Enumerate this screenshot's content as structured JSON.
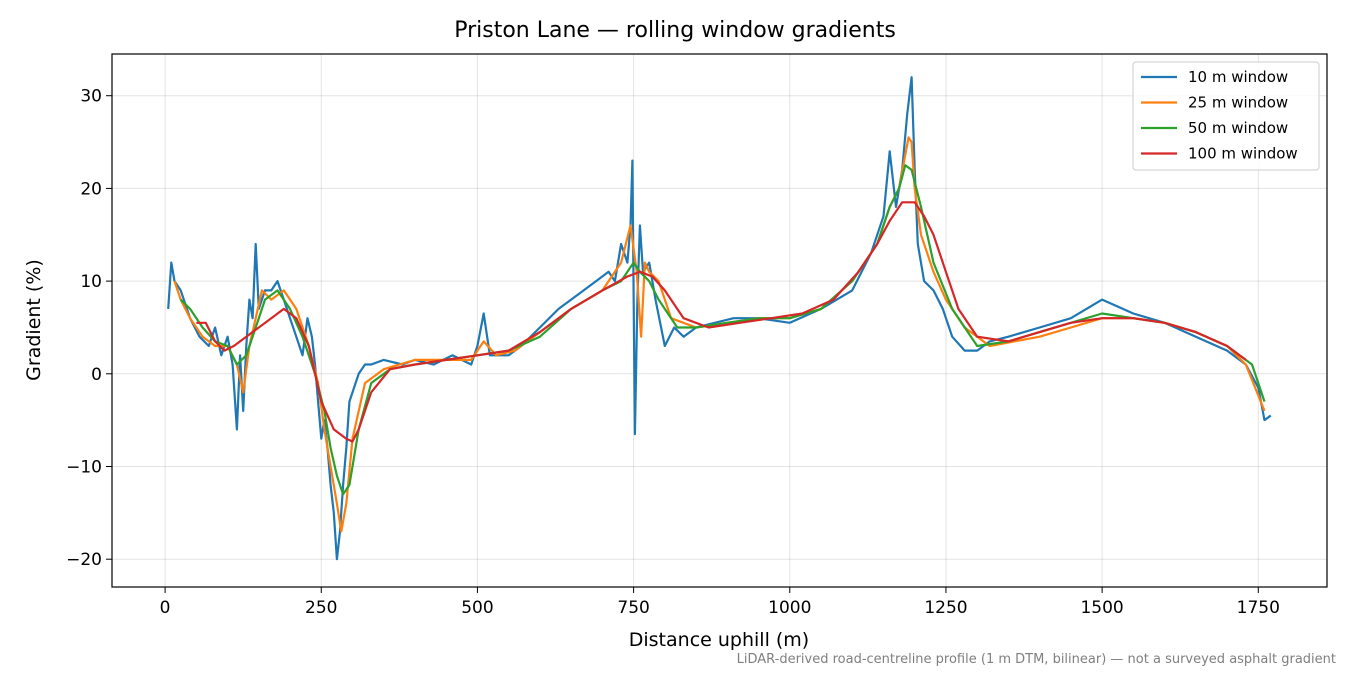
{
  "chart_data": {
    "type": "line",
    "title": "Priston Lane — rolling window gradients",
    "xlabel": "Distance uphill (m)",
    "ylabel": "Gradient (%)",
    "footnote": "LiDAR-derived road-centreline profile (1 m DTM, bilinear) — not a surveyed asphalt gradient",
    "xlim": [
      -85,
      1860
    ],
    "ylim": [
      -23,
      34.5
    ],
    "xticks": [
      0,
      250,
      500,
      750,
      1000,
      1250,
      1500,
      1750
    ],
    "yticks": [
      -20,
      -10,
      0,
      10,
      20,
      30
    ],
    "xtick_labels": [
      "0",
      "250",
      "500",
      "750",
      "1000",
      "1250",
      "1500",
      "1750"
    ],
    "ytick_labels": [
      "−20",
      "−10",
      "0",
      "10",
      "20",
      "30"
    ],
    "grid": true,
    "legend_position": "top-right",
    "series": [
      {
        "name": "10 m window",
        "color": "#1f77b4",
        "x": [
          5,
          10,
          15,
          25,
          40,
          55,
          70,
          80,
          90,
          100,
          108,
          115,
          120,
          125,
          130,
          135,
          140,
          145,
          150,
          155,
          160,
          170,
          180,
          190,
          200,
          210,
          220,
          228,
          235,
          240,
          245,
          250,
          255,
          260,
          265,
          270,
          275,
          280,
          285,
          290,
          295,
          300,
          310,
          320,
          330,
          350,
          380,
          400,
          430,
          460,
          490,
          500,
          510,
          520,
          530,
          550,
          570,
          600,
          630,
          660,
          690,
          710,
          720,
          730,
          740,
          745,
          748,
          752,
          756,
          760,
          765,
          775,
          785,
          800,
          815,
          830,
          850,
          880,
          910,
          950,
          1000,
          1050,
          1100,
          1130,
          1150,
          1160,
          1170,
          1180,
          1188,
          1195,
          1200,
          1205,
          1215,
          1230,
          1245,
          1260,
          1280,
          1300,
          1320,
          1350,
          1400,
          1450,
          1500,
          1550,
          1600,
          1650,
          1700,
          1730,
          1750,
          1760,
          1770
        ],
        "values": [
          7,
          12,
          10,
          9,
          6,
          4,
          3,
          5,
          2,
          4,
          1,
          -6,
          2,
          -4,
          3,
          8,
          6,
          14,
          7,
          8,
          9,
          9,
          10,
          8,
          6,
          4,
          2,
          6,
          4,
          1,
          -3,
          -7,
          -5,
          -8,
          -12,
          -15,
          -20,
          -17,
          -12,
          -8,
          -3,
          -2,
          0,
          1,
          1,
          1.5,
          1,
          1.5,
          1,
          2,
          1,
          3,
          6.5,
          2,
          2,
          2,
          3,
          5,
          7,
          8.5,
          10,
          11,
          10,
          14,
          12,
          16,
          23,
          -6.5,
          8,
          16,
          11,
          12,
          8,
          3,
          5,
          4,
          5,
          5.5,
          6,
          6,
          5.5,
          7,
          9,
          13,
          17,
          24,
          18,
          22,
          28,
          32,
          22,
          14,
          10,
          9,
          7,
          4,
          2.5,
          2.5,
          3.5,
          4,
          5,
          6,
          8,
          6.5,
          5.5,
          4,
          2.5,
          1,
          -1.5,
          -5,
          -4.5
        ]
      },
      {
        "name": "25 m window",
        "color": "#ff7f0e",
        "x": [
          15,
          25,
          40,
          60,
          80,
          100,
          115,
          125,
          135,
          145,
          155,
          170,
          190,
          210,
          230,
          245,
          255,
          265,
          275,
          282,
          290,
          300,
          320,
          350,
          400,
          450,
          490,
          510,
          530,
          560,
          600,
          650,
          700,
          730,
          745,
          755,
          762,
          768,
          775,
          790,
          810,
          850,
          900,
          950,
          1000,
          1050,
          1100,
          1140,
          1160,
          1175,
          1190,
          1195,
          1200,
          1210,
          1230,
          1250,
          1280,
          1320,
          1400,
          1450,
          1500,
          1550,
          1600,
          1650,
          1700,
          1730,
          1760
        ],
        "values": [
          10,
          8,
          6,
          4,
          3,
          3,
          1,
          -2,
          3,
          6,
          9,
          8,
          9,
          7,
          3,
          -1,
          -6,
          -10,
          -14,
          -17,
          -14,
          -7,
          -1,
          0.5,
          1.5,
          1.5,
          1.5,
          3.5,
          2,
          2.5,
          4.5,
          7,
          9,
          12,
          16,
          11,
          4,
          12,
          11,
          10,
          6,
          5,
          5.5,
          6,
          6,
          7,
          10,
          14,
          18,
          20,
          25.5,
          25,
          20,
          15,
          11,
          8,
          5,
          3,
          4,
          5,
          6,
          6,
          5.5,
          4.5,
          3,
          1,
          -4
        ]
      },
      {
        "name": "50 m window",
        "color": "#2ca02c",
        "x": [
          25,
          40,
          60,
          80,
          100,
          115,
          130,
          145,
          160,
          180,
          200,
          220,
          240,
          255,
          265,
          275,
          285,
          295,
          310,
          330,
          360,
          400,
          450,
          500,
          550,
          600,
          650,
          700,
          730,
          750,
          760,
          775,
          790,
          800,
          820,
          850,
          900,
          950,
          1000,
          1050,
          1100,
          1140,
          1160,
          1175,
          1185,
          1195,
          1210,
          1230,
          1260,
          1300,
          1350,
          1400,
          1450,
          1500,
          1550,
          1600,
          1650,
          1700,
          1740,
          1760
        ],
        "values": [
          8,
          7,
          5,
          3.5,
          3,
          1,
          2,
          5,
          8,
          9,
          7,
          4,
          0,
          -4,
          -8,
          -11,
          -13,
          -12,
          -6,
          -1,
          0.5,
          1,
          1.5,
          2,
          2.5,
          4,
          7,
          9,
          10,
          12,
          11,
          10,
          8,
          7,
          5,
          5,
          5.5,
          6,
          6,
          7,
          10,
          14,
          18,
          20,
          22.5,
          22,
          18,
          12,
          7,
          3,
          3.5,
          4.5,
          5.5,
          6.5,
          6,
          5.5,
          4.5,
          3,
          1,
          -3
        ]
      },
      {
        "name": "100 m window",
        "color": "#d62728",
        "x": [
          50,
          65,
          80,
          95,
          110,
          130,
          150,
          170,
          190,
          210,
          230,
          250,
          270,
          290,
          300,
          310,
          330,
          360,
          400,
          450,
          500,
          550,
          600,
          650,
          700,
          740,
          760,
          780,
          800,
          830,
          870,
          920,
          970,
          1020,
          1070,
          1110,
          1140,
          1160,
          1180,
          1200,
          1215,
          1230,
          1250,
          1270,
          1300,
          1350,
          1400,
          1450,
          1500,
          1550,
          1600,
          1650,
          1700,
          1730
        ],
        "values": [
          5.5,
          5.5,
          3.5,
          2.5,
          3,
          4,
          5,
          6,
          7,
          6,
          3,
          -3,
          -6,
          -7,
          -7.3,
          -6,
          -2,
          0.5,
          1,
          1.5,
          2,
          2.5,
          4.5,
          7,
          9,
          10.5,
          11,
          10.5,
          9,
          6,
          5,
          5.5,
          6,
          6.5,
          8,
          11,
          14,
          16.5,
          18.5,
          18.5,
          17,
          15,
          11,
          7,
          4,
          3.5,
          4.5,
          5.5,
          6,
          6,
          5.5,
          4.5,
          3,
          1.5
        ]
      }
    ]
  }
}
